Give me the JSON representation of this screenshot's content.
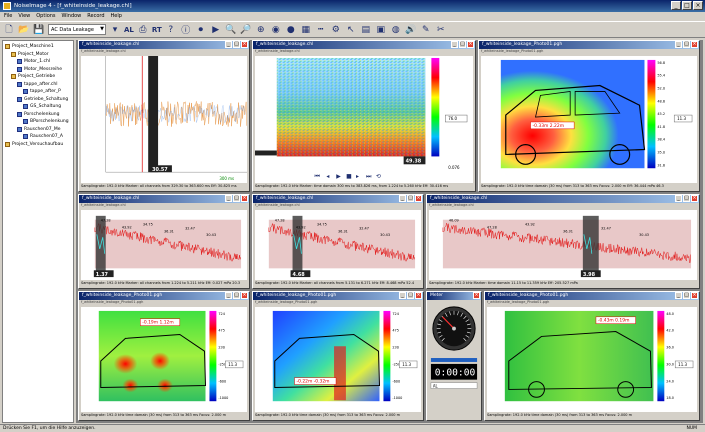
{
  "app": {
    "title": "NoiseImage 4 - [f_whiteinside_leakage.chl]"
  },
  "menu": [
    "File",
    "View",
    "Options",
    "Window",
    "Record",
    "Help"
  ],
  "toolbar": {
    "select_value": "AC Data Leakage",
    "al_label": "AL",
    "rt_label": "RT"
  },
  "tree": [
    {
      "label": "Project_Maschine1",
      "depth": 0,
      "type": "folder"
    },
    {
      "label": "Project_Motor",
      "depth": 1,
      "type": "folder"
    },
    {
      "label": "Motor_1.chl",
      "depth": 2,
      "type": "file"
    },
    {
      "label": "Motor_Messreihe",
      "depth": 2,
      "type": "file"
    },
    {
      "label": "Project_Getriebe",
      "depth": 1,
      "type": "folder"
    },
    {
      "label": "tappe_after.chl",
      "depth": 2,
      "type": "file"
    },
    {
      "label": "tappe_after_P",
      "depth": 3,
      "type": "file"
    },
    {
      "label": "Getriebe_Schaltung",
      "depth": 2,
      "type": "file"
    },
    {
      "label": "GS_Schaltung",
      "depth": 3,
      "type": "file"
    },
    {
      "label": "Porschelenkung",
      "depth": 2,
      "type": "file"
    },
    {
      "label": "BPorschelenkung",
      "depth": 3,
      "type": "file"
    },
    {
      "label": "Rauschen07_Me",
      "depth": 2,
      "type": "file"
    },
    {
      "label": "Rauschen07_A",
      "depth": 3,
      "type": "file"
    },
    {
      "label": "Project_Versuchaufbau",
      "depth": 0,
      "type": "folder"
    }
  ],
  "windows": {
    "w1": {
      "title": "f_whiteinside_leakage.chl",
      "sub": "f_whiteinside_leakage.chl",
      "footer": "Samplingrate: 192.0 kHz  Marker: all channels from 329.30 to 363.600 ms  Eff: 30.825 ms",
      "marker": "30.57",
      "xlabel": "300 ms"
    },
    "w2": {
      "title": "f_whiteinside_leakage.chl",
      "sub": "f_whiteinside_leakage.chl",
      "footer": "Samplingrate: 192.0 kHz  Marker: time domain 300 ms to 383.826 ms, from 1.224 to 5.260 kHz  Eff: 30.416 ms",
      "marker": "49.38",
      "readout": "76.0",
      "readout2": "0.076"
    },
    "w3": {
      "title": "f_whiteinside_leakage_Photo01.pgh",
      "sub": "f_whiteinside_leakage_Photo01.pgh",
      "footer": "Samplingrate: 192.0 kHz  time domain (30 ms) from 313 to 363 ms  Focus: 2.000 m  Eff: 36.444 mPa 46.3",
      "cursor": "-0.33m  2.22m",
      "scale": [
        "56.8",
        "55.4",
        "52.0",
        "48.6",
        "45.2",
        "41.8",
        "38.4",
        "35.0",
        "31.6"
      ],
      "readout": "11.3"
    },
    "w4": {
      "title": "f_whiteinside_leakage.chl",
      "sub": "f_whiteinside_leakage.chl",
      "footer": "Samplingrate: 192.0 kHz  Marker: all channels from 1.224 to 5.211 kHz  Eff: 0.027 mPa 20.3",
      "marker": "1.37",
      "labels": [
        "47.28",
        "43.92",
        "34.75",
        "36.31",
        "32.47",
        "30.43"
      ]
    },
    "w5": {
      "title": "f_whiteinside_leakage.chl",
      "sub": "f_whiteinside_leakage.chl",
      "footer": "Samplingrate: 192.0 kHz  Marker: all channels from 5.131 to 6.271 kHz  Eff: 8.468 mPa 52.4",
      "marker": "4.68",
      "labels": [
        "47.28",
        "43.92",
        "34.75",
        "36.31",
        "32.47",
        "30.43"
      ]
    },
    "w6": {
      "title": "f_whiteinside_leakage.chl",
      "sub": "f_whiteinside_leakage.chl",
      "footer": "Samplingrate: 192.0 kHz  Marker: time domain 11.15 to 11.359 kHz  Eff: 205.527 mPa",
      "marker": "3.98",
      "labels": [
        "46.09",
        "47.28",
        "43.92",
        "36.31",
        "32.47",
        "30.43"
      ]
    },
    "w7": {
      "title": "f_whiteinside_leakage_Photo01.pgh",
      "sub": "f_whiteinside_leakage_Photo01.pgh",
      "footer": "Samplingrate: 192.0 kHz  time domain (30 ms) from 313 to 363 ms  Focus: 2.000 m",
      "cursor": "-0.19m  1.12m",
      "scale": [
        "724",
        "475",
        "230",
        "-250",
        "-600",
        "-1000"
      ],
      "readout": "11.3"
    },
    "w8": {
      "title": "f_whiteinside_leakage_Photo01.pgh",
      "sub": "f_whiteinside_leakage_Photo01.pgh",
      "footer": "Samplingrate: 192.0 kHz  time domain (30 ms) from 313 to 363 ms  Focus: 2.000 m",
      "cursor": "-0.22m  -0.32m",
      "scale": [
        "724",
        "475",
        "230",
        "-250",
        "-600",
        "-1000"
      ],
      "readout": "11.3"
    },
    "w9": {
      "title": "Meter",
      "sub": "",
      "display": "0:00:00",
      "unit": "AL"
    },
    "w10": {
      "title": "f_whiteinside_leakage_Photo01.pgh",
      "sub": "f_whiteinside_leakage_Photo01.pgh",
      "footer": "Samplingrate: 192.0 kHz  time domain (30 ms) from 313 to 363 ms  Focus: 2.000 m",
      "cursor": "-0.43m  0.19m",
      "scale": [
        "48.0",
        "42.0",
        "36.0",
        "30.0",
        "24.0",
        "18.0"
      ],
      "readout": "11.3"
    }
  },
  "status": {
    "left": "Drücken Sie F1, um die Hilfe anzuzeigen.",
    "right": "NUM"
  }
}
